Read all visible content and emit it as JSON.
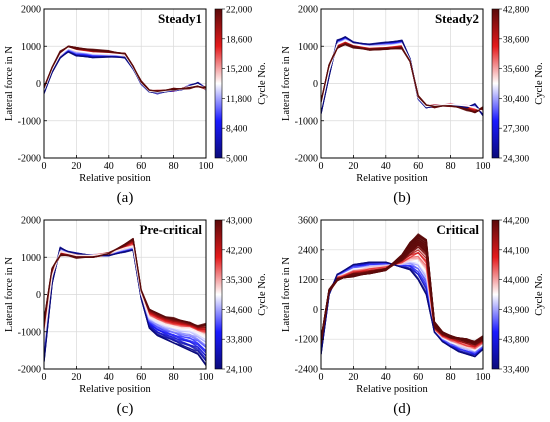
{
  "figure": {
    "panels": [
      {
        "letter": "(a)",
        "title": "Steady1",
        "xlabel": "Relative position",
        "ylabel": "Lateral force in N",
        "xticks": [
          "0",
          "20",
          "40",
          "60",
          "80",
          "100"
        ],
        "yticks": [
          "-2000",
          "-1000",
          "0",
          "1000",
          "2000"
        ],
        "colorbar_label": "Cycle No.",
        "colorbar_ticks": [
          "5,000",
          "8,400",
          "11,800",
          "15,200",
          "18,600",
          "22,000"
        ]
      },
      {
        "letter": "(b)",
        "title": "Steady2",
        "xlabel": "Relative position",
        "ylabel": "Lateral force in N",
        "xticks": [
          "0",
          "20",
          "40",
          "60",
          "80",
          "100"
        ],
        "yticks": [
          "-2000",
          "-1000",
          "0",
          "1000",
          "2000"
        ],
        "colorbar_label": "Cycle No.",
        "colorbar_ticks": [
          "24,300",
          "27,300",
          "30,400",
          "35,600",
          "38,600",
          "42,800"
        ]
      },
      {
        "letter": "(c)",
        "title": "Pre-critical",
        "xlabel": "Relative position",
        "ylabel": "Lateral force in N",
        "xticks": [
          "0",
          "20",
          "40",
          "60",
          "80",
          "100"
        ],
        "yticks": [
          "-2000",
          "-1000",
          "0",
          "1000",
          "2000"
        ],
        "colorbar_label": "Cycle No.",
        "colorbar_ticks": [
          "24,100",
          "33,800",
          "34,600",
          "35,300",
          "42,200",
          "43,000"
        ]
      },
      {
        "letter": "(d)",
        "title": "Critical",
        "xlabel": "Relative position",
        "ylabel": "Lateral force in N",
        "xticks": [
          "0",
          "20",
          "40",
          "60",
          "80",
          "100"
        ],
        "yticks": [
          "-2400",
          "-1200",
          "0",
          "1200",
          "2400",
          "3600"
        ],
        "colorbar_label": "Cycle No.",
        "colorbar_ticks": [
          "33,400",
          "43,800",
          "43,900",
          "44,000",
          "44,100",
          "44,200"
        ]
      }
    ]
  },
  "chart_data": [
    {
      "type": "line",
      "title": "Steady1",
      "xlabel": "Relative position",
      "ylabel": "Lateral force in N",
      "xlim": [
        0,
        100
      ],
      "ylim": [
        -2000,
        2000
      ],
      "grid": true,
      "legend": "colorbar right",
      "colorbar": {
        "label": "Cycle No.",
        "range": [
          5000,
          22000
        ],
        "colors": [
          "#0b0b7a",
          "#1a1aff",
          "#ffffff",
          "#e41a1c",
          "#5a0a0a"
        ]
      },
      "series": [
        {
          "cycle": 5000,
          "x": [
            0,
            5,
            10,
            15,
            20,
            30,
            40,
            50,
            55,
            60,
            65,
            70,
            75,
            80,
            85,
            90,
            95,
            100
          ],
          "y": [
            -250,
            300,
            700,
            850,
            750,
            700,
            720,
            700,
            400,
            0,
            -220,
            -250,
            -220,
            -180,
            -160,
            -60,
            20,
            -150
          ]
        },
        {
          "cycle": 13500,
          "x": [
            0,
            5,
            10,
            15,
            20,
            30,
            40,
            50,
            55,
            60,
            65,
            70,
            75,
            80,
            85,
            90,
            95,
            100
          ],
          "y": [
            -180,
            380,
            780,
            950,
            880,
            820,
            800,
            760,
            430,
            20,
            -200,
            -230,
            -200,
            -170,
            -150,
            -80,
            -30,
            -140
          ]
        },
        {
          "cycle": 22000,
          "x": [
            0,
            5,
            10,
            15,
            20,
            30,
            40,
            50,
            55,
            60,
            65,
            70,
            75,
            80,
            85,
            90,
            95,
            100
          ],
          "y": [
            -120,
            430,
            840,
            1000,
            960,
            900,
            860,
            800,
            460,
            40,
            -180,
            -210,
            -180,
            -160,
            -140,
            -110,
            -80,
            -120
          ]
        }
      ]
    },
    {
      "type": "line",
      "title": "Steady2",
      "xlabel": "Relative position",
      "ylabel": "Lateral force in N",
      "xlim": [
        0,
        100
      ],
      "ylim": [
        -2000,
        2000
      ],
      "grid": true,
      "legend": "colorbar right",
      "colorbar": {
        "label": "Cycle No.",
        "range": [
          24300,
          42800
        ],
        "colors": [
          "#0b0b7a",
          "#1a1aff",
          "#ffffff",
          "#e41a1c",
          "#5a0a0a"
        ]
      },
      "series": [
        {
          "cycle": 24300,
          "x": [
            0,
            5,
            10,
            15,
            20,
            30,
            40,
            50,
            55,
            60,
            65,
            70,
            75,
            80,
            85,
            90,
            95,
            100
          ],
          "y": [
            -800,
            200,
            1150,
            1250,
            1100,
            1050,
            1100,
            1150,
            650,
            -400,
            -650,
            -600,
            -600,
            -580,
            -600,
            -650,
            -550,
            -850
          ]
        },
        {
          "cycle": 33500,
          "x": [
            0,
            5,
            10,
            15,
            20,
            30,
            40,
            50,
            55,
            60,
            65,
            70,
            75,
            80,
            85,
            90,
            95,
            100
          ],
          "y": [
            -650,
            350,
            1050,
            1150,
            1050,
            980,
            1000,
            1050,
            620,
            -380,
            -620,
            -600,
            -580,
            -560,
            -580,
            -600,
            -650,
            -750
          ]
        },
        {
          "cycle": 42800,
          "x": [
            0,
            5,
            10,
            15,
            20,
            30,
            40,
            50,
            55,
            60,
            65,
            70,
            75,
            80,
            85,
            90,
            95,
            100
          ],
          "y": [
            -500,
            500,
            950,
            1050,
            980,
            900,
            920,
            950,
            600,
            -350,
            -580,
            -620,
            -600,
            -600,
            -640,
            -700,
            -780,
            -650
          ]
        }
      ]
    },
    {
      "type": "line",
      "title": "Pre-critical",
      "xlabel": "Relative position",
      "ylabel": "Lateral force in N",
      "xlim": [
        0,
        100
      ],
      "ylim": [
        -2000,
        2000
      ],
      "grid": true,
      "legend": "colorbar right",
      "colorbar": {
        "label": "Cycle No.",
        "range": [
          24100,
          43000
        ],
        "colors": [
          "#0b0b7a",
          "#1a1aff",
          "#ffffff",
          "#e41a1c",
          "#5a0a0a"
        ]
      },
      "series": [
        {
          "cycle": 24100,
          "x": [
            0,
            5,
            10,
            15,
            20,
            30,
            40,
            50,
            55,
            60,
            65,
            70,
            75,
            80,
            85,
            90,
            95,
            100
          ],
          "y": [
            -1800,
            300,
            1250,
            1150,
            1100,
            1050,
            1050,
            1150,
            1200,
            -100,
            -900,
            -1100,
            -1200,
            -1300,
            -1400,
            -1500,
            -1600,
            -1900
          ]
        },
        {
          "cycle": 34000,
          "x": [
            0,
            5,
            10,
            15,
            20,
            30,
            40,
            50,
            55,
            60,
            65,
            70,
            75,
            80,
            85,
            90,
            95,
            100
          ],
          "y": [
            -1200,
            500,
            1150,
            1100,
            1050,
            1050,
            1100,
            1250,
            1300,
            0,
            -600,
            -700,
            -800,
            -850,
            -900,
            -900,
            -1000,
            -1100
          ]
        },
        {
          "cycle": 43000,
          "x": [
            0,
            5,
            10,
            15,
            20,
            30,
            40,
            50,
            55,
            60,
            65,
            70,
            75,
            80,
            85,
            90,
            95,
            100
          ],
          "y": [
            -700,
            700,
            1050,
            1050,
            1000,
            1000,
            1100,
            1350,
            1500,
            100,
            -400,
            -500,
            -600,
            -650,
            -700,
            -750,
            -850,
            -800
          ]
        }
      ]
    },
    {
      "type": "line",
      "title": "Critical",
      "xlabel": "Relative position",
      "ylabel": "Lateral force in N",
      "xlim": [
        0,
        100
      ],
      "ylim": [
        -2400,
        3600
      ],
      "grid": true,
      "legend": "colorbar right",
      "colorbar": {
        "label": "Cycle No.",
        "range": [
          33400,
          44200
        ],
        "colors": [
          "#0b0b7a",
          "#1a1aff",
          "#ffffff",
          "#e41a1c",
          "#5a0a0a"
        ]
      },
      "series": [
        {
          "cycle": 33400,
          "x": [
            0,
            5,
            10,
            15,
            20,
            30,
            40,
            50,
            55,
            60,
            65,
            70,
            75,
            80,
            85,
            90,
            95,
            100
          ],
          "y": [
            -1800,
            600,
            1400,
            1600,
            1800,
            1900,
            1900,
            1700,
            1600,
            1200,
            600,
            -900,
            -1300,
            -1500,
            -1700,
            -1800,
            -1900,
            -1600
          ]
        },
        {
          "cycle": 44000,
          "x": [
            0,
            5,
            10,
            15,
            20,
            30,
            40,
            50,
            55,
            60,
            65,
            70,
            75,
            80,
            85,
            90,
            95,
            100
          ],
          "y": [
            -1400,
            700,
            1200,
            1300,
            1400,
            1500,
            1600,
            2000,
            2300,
            2600,
            2300,
            -700,
            -1000,
            -1100,
            -1200,
            -1300,
            -1400,
            -1200
          ]
        },
        {
          "cycle": 44200,
          "x": [
            0,
            5,
            10,
            15,
            20,
            30,
            40,
            50,
            55,
            60,
            65,
            70,
            75,
            80,
            85,
            90,
            95,
            100
          ],
          "y": [
            -1200,
            800,
            1200,
            1300,
            1350,
            1450,
            1600,
            2200,
            2700,
            3000,
            2800,
            -500,
            -900,
            -1100,
            -1150,
            -1200,
            -1300,
            -1100
          ]
        }
      ]
    }
  ]
}
